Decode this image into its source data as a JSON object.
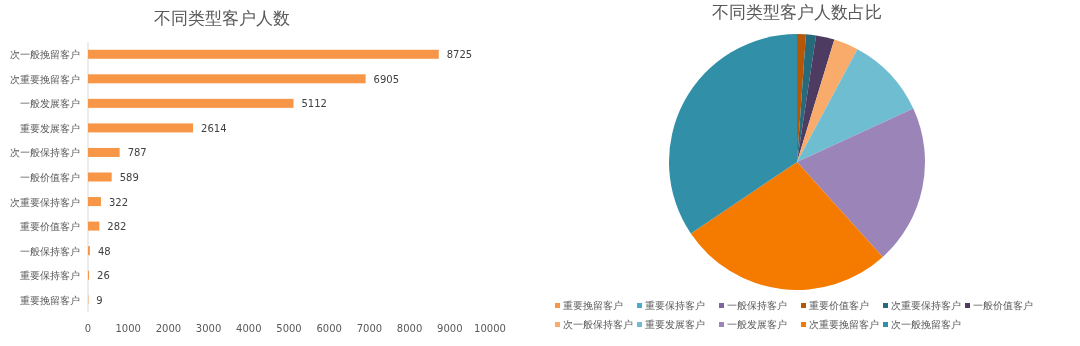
{
  "chart_data": [
    {
      "type": "bar",
      "orientation": "horizontal",
      "title": "不同类型客户人数",
      "categories": [
        "次一般挽留客户",
        "次重要挽留客户",
        "一般发展客户",
        "重要发展客户",
        "次一般保持客户",
        "一般价值客户",
        "次重要保持客户",
        "重要价值客户",
        "一般保持客户",
        "重要保持客户",
        "重要挽留客户"
      ],
      "values": [
        8725,
        6905,
        5112,
        2614,
        787,
        589,
        322,
        282,
        48,
        26,
        9
      ],
      "color": "#f79646",
      "xlim": [
        0,
        10000
      ],
      "xticks": [
        0,
        1000,
        2000,
        3000,
        4000,
        5000,
        6000,
        7000,
        8000,
        9000,
        10000
      ],
      "data_labels": true
    },
    {
      "type": "pie",
      "title": "不同类型客户人数占比",
      "legend": "bottom",
      "categories": [
        "重要挽留客户",
        "重要保持客户",
        "一般保持客户",
        "重要价值客户",
        "次重要保持客户",
        "一般价值客户",
        "次一般保持客户",
        "重要发展客户",
        "一般发展客户",
        "次重要挽留客户",
        "次一般挽留客户"
      ],
      "values": [
        null,
        null,
        null,
        1.11,
        1.27,
        2.32,
        3.1,
        10.28,
        20.11,
        27.16,
        34.32
      ],
      "colors": [
        "#f79646",
        "#4bacc6",
        "#8064a2",
        "#b65708",
        "#276a7c",
        "#4d3b62",
        "#f9ab6b",
        "#6fbdd1",
        "#9b85b8",
        "#f47a00",
        "#318fa7"
      ]
    }
  ]
}
